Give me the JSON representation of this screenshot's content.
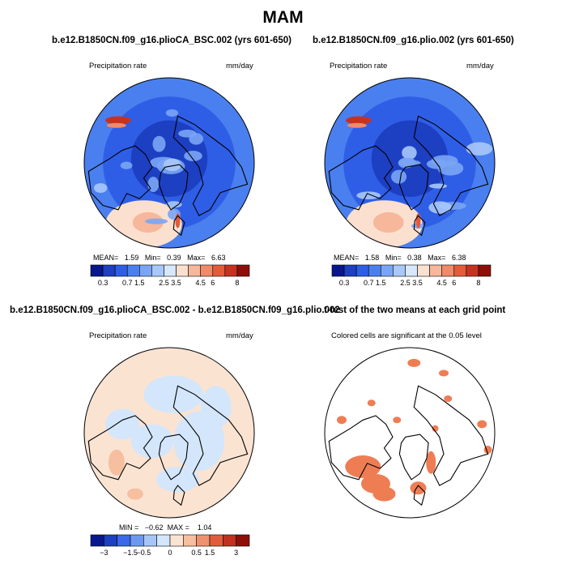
{
  "main_title": "MAM",
  "chart_data": [
    {
      "type": "heatmap",
      "projection": "north-polar-stereographic",
      "title": "b.e12.B1850CN.f09_g16.plioCA_BSC.002 (yrs 601-650)",
      "variable": "Precipitation rate",
      "units": "mm/day",
      "stats": {
        "mean_label": "MEAN=",
        "mean": "1.59",
        "min_label": "Min=",
        "min": "0.39",
        "max_label": "Max=",
        "max": "6.63"
      },
      "colorbar": {
        "levels": [
          "0.3",
          "0.7",
          "1.5",
          "2.5",
          "3.5",
          "4.5",
          "6",
          "8"
        ],
        "colors": [
          "#08178e",
          "#1d3fc2",
          "#2f5ee6",
          "#4a7fef",
          "#7aa5f5",
          "#a9c8fa",
          "#d7e8fd",
          "#fce0cf",
          "#f7b79b",
          "#f08a69",
          "#e35b3b",
          "#c73220",
          "#8e0f0a"
        ]
      }
    },
    {
      "type": "heatmap",
      "projection": "north-polar-stereographic",
      "title": "b.e12.B1850CN.f09_g16.plio.002 (yrs 601-650)",
      "variable": "Precipitation rate",
      "units": "mm/day",
      "stats": {
        "mean_label": "MEAN=",
        "mean": "1.58",
        "min_label": "Min=",
        "min": "0.38",
        "max_label": "Max=",
        "max": "6.38"
      },
      "colorbar": {
        "levels": [
          "0.3",
          "0.7",
          "1.5",
          "2.5",
          "3.5",
          "4.5",
          "6",
          "8"
        ],
        "colors": [
          "#08178e",
          "#1d3fc2",
          "#2f5ee6",
          "#4a7fef",
          "#7aa5f5",
          "#a9c8fa",
          "#d7e8fd",
          "#fce0cf",
          "#f7b79b",
          "#f08a69",
          "#e35b3b",
          "#c73220",
          "#8e0f0a"
        ]
      }
    },
    {
      "type": "heatmap",
      "projection": "north-polar-stereographic",
      "title": "b.e12.B1850CN.f09_g16.plioCA_BSC.002 - b.e12.B1850CN.f09_g16.plio.002",
      "variable": "Precipitation rate",
      "units": "mm/day",
      "stats": {
        "min_label": "MIN =",
        "min": "−0.62",
        "max_label": "MAX =",
        "max": "1.04"
      },
      "colorbar": {
        "levels": [
          "−3",
          "−1.5",
          "−0.5",
          "0",
          "0.5",
          "1.5",
          "3"
        ],
        "colors": [
          "#08178e",
          "#1d3fc2",
          "#3a68e8",
          "#6d98f2",
          "#a7c6f8",
          "#d3e6fb",
          "#fbe3d2",
          "#f6bfa0",
          "#ef9170",
          "#e05c3c",
          "#c2301f",
          "#8e0f0a"
        ]
      }
    },
    {
      "type": "heatmap",
      "projection": "north-polar-stereographic",
      "title": "t-test of the two means at each grid point",
      "note": "Colored cells are significant at the 0.05 level",
      "fill_color": "#ef7d54"
    }
  ]
}
